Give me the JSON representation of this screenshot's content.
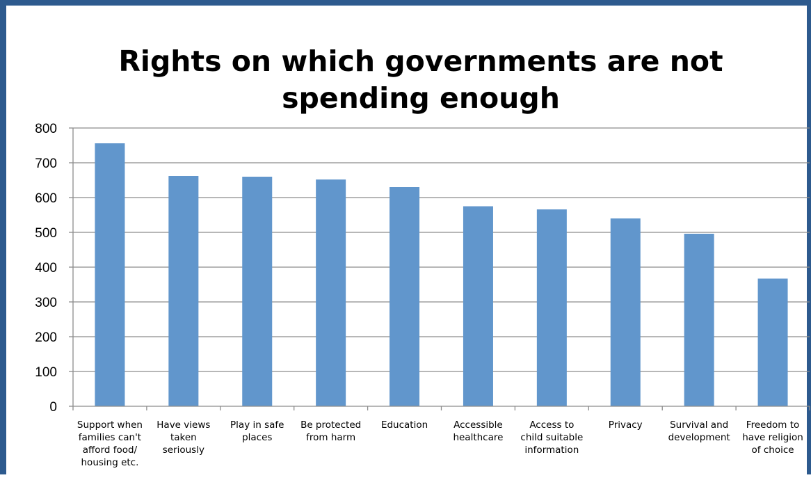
{
  "chart_data": {
    "type": "bar",
    "title_lines": [
      "Rights on which governments are not",
      "spending enough"
    ],
    "xlabel": "",
    "ylabel": "",
    "categories": [
      [
        "Support when",
        "families can't",
        "afford food/",
        "housing etc."
      ],
      [
        "Have views",
        "taken",
        "seriously"
      ],
      [
        "Play in safe",
        "places"
      ],
      [
        "Be protected",
        "from harm"
      ],
      [
        "Education"
      ],
      [
        "Accessible",
        "healthcare"
      ],
      [
        "Access to",
        "child suitable",
        "information"
      ],
      [
        "Privacy"
      ],
      [
        "Survival and",
        "development"
      ],
      [
        "Freedom to",
        "have religion",
        "of choice"
      ]
    ],
    "values": [
      756,
      662,
      660,
      652,
      630,
      575,
      566,
      540,
      496,
      367
    ],
    "ylim": [
      0,
      800
    ],
    "yticks": [
      "0",
      "100",
      "200",
      "300",
      "400",
      "500",
      "600",
      "700",
      "800"
    ],
    "grid": true,
    "legend": "none",
    "colors": {
      "bar": "#6196cc",
      "grid": "#8c8c8c",
      "axis": "#8c8c8c",
      "frame": "#2d5a8e"
    }
  }
}
